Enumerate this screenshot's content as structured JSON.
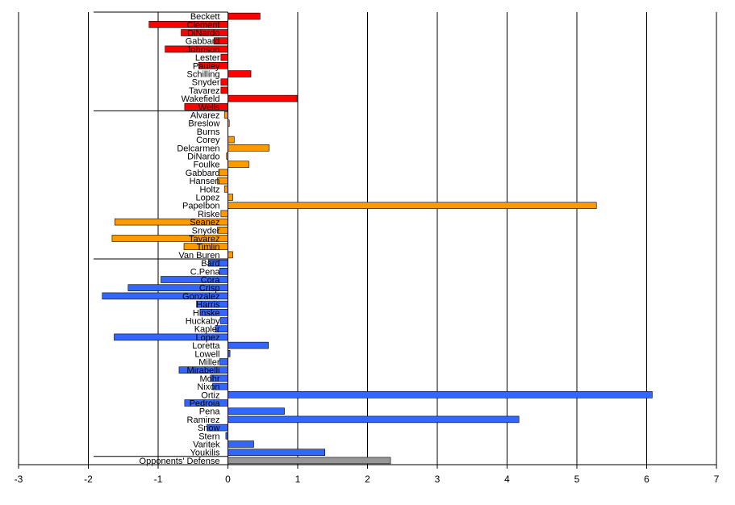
{
  "chart_data": {
    "type": "bar",
    "orientation": "horizontal",
    "title": "",
    "xlabel": "",
    "ylabel": "",
    "xlim": [
      -3,
      7
    ],
    "x_ticks": [
      "-3",
      "-2",
      "-1",
      "0",
      "1",
      "2",
      "3",
      "4",
      "5",
      "6",
      "7"
    ],
    "grid": "vertical",
    "legend": "none",
    "colors": {
      "red": "#ff0000",
      "orange": "#ff9900",
      "blue": "#3366ff",
      "gray": "#969696"
    },
    "groups": [
      {
        "color": "red",
        "items": [
          {
            "label": "Beckett",
            "value": 0.46
          },
          {
            "label": "Clement",
            "value": -1.13
          },
          {
            "label": "DiNardo",
            "value": -0.67
          },
          {
            "label": "Gabbard",
            "value": -0.2
          },
          {
            "label": "Johnson",
            "value": -0.9
          },
          {
            "label": "Lester",
            "value": -0.1
          },
          {
            "label": "Pauley",
            "value": -0.42
          },
          {
            "label": "Schilling",
            "value": 0.33
          },
          {
            "label": "Snyder",
            "value": -0.1
          },
          {
            "label": "Tavarez",
            "value": -0.1
          },
          {
            "label": "Wakefield",
            "value": 0.99
          },
          {
            "label": "Wells",
            "value": -0.62
          }
        ]
      },
      {
        "color": "orange",
        "items": [
          {
            "label": "Alvarez",
            "value": -0.05
          },
          {
            "label": "Breslow",
            "value": 0.02
          },
          {
            "label": "Burns",
            "value": 0.0
          },
          {
            "label": "Corey",
            "value": 0.09
          },
          {
            "label": "Delcarmen",
            "value": 0.59
          },
          {
            "label": "DiNardo",
            "value": -0.02
          },
          {
            "label": "Foulke",
            "value": 0.3
          },
          {
            "label": "Gabbard",
            "value": -0.13
          },
          {
            "label": "Hansen",
            "value": -0.15
          },
          {
            "label": "Holtz",
            "value": -0.05
          },
          {
            "label": "Lopez",
            "value": 0.07
          },
          {
            "label": "Papelbon",
            "value": 5.28
          },
          {
            "label": "Riske",
            "value": -0.1
          },
          {
            "label": "Seanez",
            "value": -1.62
          },
          {
            "label": "Snyder",
            "value": -0.15
          },
          {
            "label": "Tavarez",
            "value": -1.66
          },
          {
            "label": "Timlin",
            "value": -0.63
          },
          {
            "label": "Van Buren",
            "value": 0.07
          }
        ]
      },
      {
        "color": "blue",
        "items": [
          {
            "label": "Bard",
            "value": -0.28
          },
          {
            "label": "C.Pena",
            "value": -0.12
          },
          {
            "label": "Cora",
            "value": -0.96
          },
          {
            "label": "Crisp",
            "value": -1.43
          },
          {
            "label": "Gonzalez",
            "value": -1.8
          },
          {
            "label": "Harris",
            "value": -0.45
          },
          {
            "label": "Hinske",
            "value": -0.4
          },
          {
            "label": "Huckaby",
            "value": -0.11
          },
          {
            "label": "Kapler",
            "value": -0.18
          },
          {
            "label": "Lopez",
            "value": -1.63
          },
          {
            "label": "Loretta",
            "value": 0.58
          },
          {
            "label": "Lowell",
            "value": 0.03
          },
          {
            "label": "Miller",
            "value": -0.12
          },
          {
            "label": "Mirabelli",
            "value": -0.7
          },
          {
            "label": "Mohr",
            "value": -0.25
          },
          {
            "label": "Nixon",
            "value": -0.22
          },
          {
            "label": "Ortiz",
            "value": 6.08
          },
          {
            "label": "Pedroia",
            "value": -0.62
          },
          {
            "label": "Pena",
            "value": 0.81
          },
          {
            "label": "Ramirez",
            "value": 4.17
          },
          {
            "label": "Snow",
            "value": -0.3
          },
          {
            "label": "Stern",
            "value": -0.03
          },
          {
            "label": "Varitek",
            "value": 0.37
          },
          {
            "label": "Youkilis",
            "value": 1.39
          }
        ]
      },
      {
        "color": "gray",
        "items": [
          {
            "label": "Opponents' Defense",
            "value": 2.33
          }
        ]
      }
    ]
  }
}
